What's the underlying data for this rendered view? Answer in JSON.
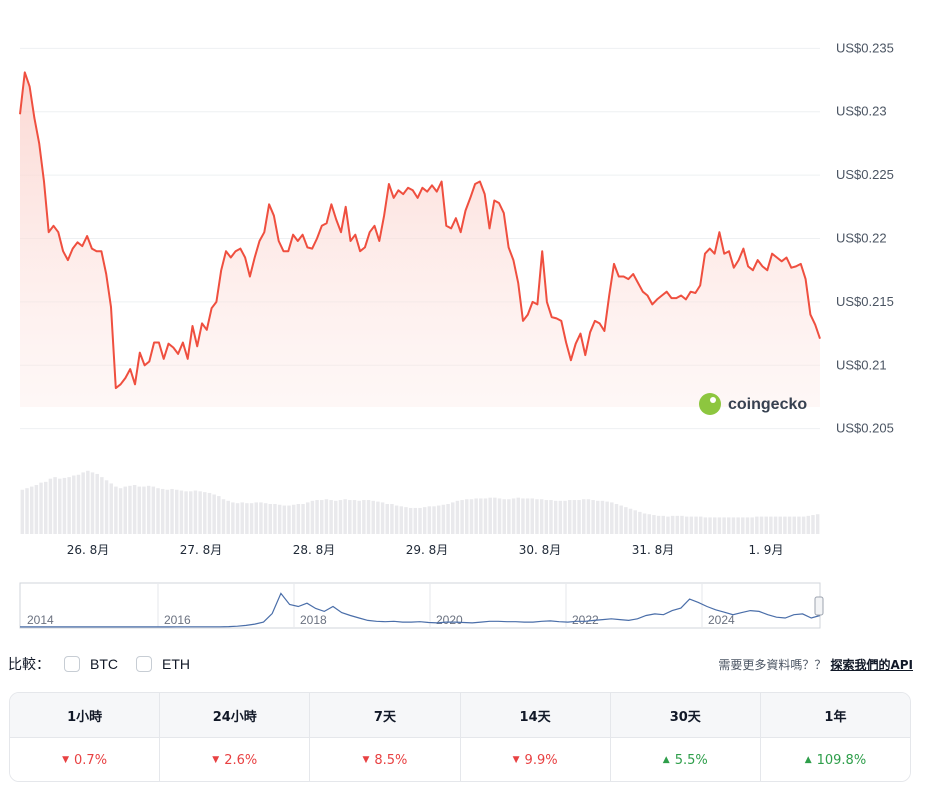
{
  "chart_data": {
    "type": "area",
    "series": [
      {
        "values": [
          0.2298,
          0.2331,
          0.232,
          0.2295,
          0.2275,
          0.2245,
          0.2205,
          0.221,
          0.2205,
          0.219,
          0.2183,
          0.2192,
          0.2197,
          0.2194,
          0.2202,
          0.2192,
          0.219,
          0.219,
          0.2172,
          0.2146,
          0.2082,
          0.2085,
          0.209,
          0.2097,
          0.2085,
          0.211,
          0.21,
          0.2103,
          0.2118,
          0.2118,
          0.2105,
          0.2117,
          0.2114,
          0.2109,
          0.2118,
          0.2105,
          0.2131,
          0.2115,
          0.2133,
          0.2128,
          0.2145,
          0.215,
          0.2175,
          0.219,
          0.2185,
          0.219,
          0.2192,
          0.2185,
          0.217,
          0.2185,
          0.2198,
          0.2205,
          0.2227,
          0.2218,
          0.2198,
          0.219,
          0.219,
          0.2203,
          0.2198,
          0.2203,
          0.2193,
          0.2192,
          0.22,
          0.221,
          0.2212,
          0.2227,
          0.2215,
          0.2205,
          0.2225,
          0.2198,
          0.2203,
          0.219,
          0.2193,
          0.2205,
          0.221,
          0.2198,
          0.2218,
          0.2243,
          0.2232,
          0.2238,
          0.2235,
          0.224,
          0.2238,
          0.2232,
          0.224,
          0.2237,
          0.2242,
          0.2237,
          0.2245,
          0.221,
          0.2208,
          0.2216,
          0.2205,
          0.2222,
          0.2232,
          0.2243,
          0.2245,
          0.2235,
          0.2208,
          0.223,
          0.2228,
          0.222,
          0.2193,
          0.2183,
          0.2165,
          0.2135,
          0.214,
          0.215,
          0.2148,
          0.219,
          0.215,
          0.2138,
          0.2137,
          0.2135,
          0.2118,
          0.2104,
          0.2117,
          0.2125,
          0.2108,
          0.2126,
          0.2135,
          0.2133,
          0.2127,
          0.2155,
          0.218,
          0.217,
          0.217,
          0.2168,
          0.2172,
          0.2165,
          0.2158,
          0.2155,
          0.2148,
          0.2152,
          0.2155,
          0.2158,
          0.2153,
          0.2153,
          0.2155,
          0.2152,
          0.2158,
          0.2157,
          0.2163,
          0.2188,
          0.2192,
          0.2188,
          0.2205,
          0.2188,
          0.219,
          0.2177,
          0.2183,
          0.2192,
          0.2178,
          0.2175,
          0.2183,
          0.2178,
          0.2175,
          0.2188,
          0.2185,
          0.2182,
          0.2185,
          0.2177,
          0.2178,
          0.218,
          0.2168,
          0.214,
          0.2132,
          0.2121
        ]
      }
    ],
    "xlabels": [
      "26. 8月",
      "27. 8月",
      "28. 8月",
      "29. 8月",
      "30. 8月",
      "31. 8月",
      "1. 9月"
    ],
    "ytick_labels": [
      "US$0.205",
      "US$0.21",
      "US$0.215",
      "US$0.22",
      "US$0.225",
      "US$0.23",
      "US$0.235"
    ],
    "yticks": [
      0.205,
      0.21,
      0.215,
      0.22,
      0.225,
      0.23,
      0.235
    ],
    "ylim": [
      0.2045,
      0.2355
    ],
    "grid": true,
    "volume": [
      0.56,
      0.58,
      0.6,
      0.62,
      0.65,
      0.66,
      0.7,
      0.72,
      0.7,
      0.71,
      0.72,
      0.74,
      0.75,
      0.78,
      0.8,
      0.78,
      0.76,
      0.72,
      0.68,
      0.64,
      0.6,
      0.58,
      0.6,
      0.61,
      0.62,
      0.6,
      0.6,
      0.61,
      0.6,
      0.58,
      0.57,
      0.56,
      0.57,
      0.56,
      0.55,
      0.54,
      0.54,
      0.55,
      0.54,
      0.53,
      0.52,
      0.5,
      0.48,
      0.44,
      0.42,
      0.4,
      0.39,
      0.4,
      0.39,
      0.39,
      0.4,
      0.4,
      0.39,
      0.38,
      0.38,
      0.37,
      0.36,
      0.36,
      0.37,
      0.38,
      0.38,
      0.4,
      0.42,
      0.43,
      0.43,
      0.44,
      0.43,
      0.42,
      0.43,
      0.44,
      0.43,
      0.43,
      0.42,
      0.43,
      0.43,
      0.42,
      0.41,
      0.4,
      0.38,
      0.38,
      0.36,
      0.35,
      0.34,
      0.33,
      0.33,
      0.33,
      0.34,
      0.35,
      0.35,
      0.36,
      0.37,
      0.38,
      0.4,
      0.42,
      0.43,
      0.44,
      0.44,
      0.45,
      0.45,
      0.45,
      0.46,
      0.46,
      0.45,
      0.44,
      0.44,
      0.45,
      0.46,
      0.45,
      0.45,
      0.45,
      0.44,
      0.44,
      0.43,
      0.43,
      0.42,
      0.42,
      0.42,
      0.43,
      0.43,
      0.43,
      0.44,
      0.44,
      0.43,
      0.42,
      0.42,
      0.41,
      0.4,
      0.38,
      0.36,
      0.34,
      0.32,
      0.3,
      0.28,
      0.26,
      0.25,
      0.24,
      0.23,
      0.23,
      0.22,
      0.23,
      0.23,
      0.23,
      0.22,
      0.22,
      0.22,
      0.22,
      0.21,
      0.21,
      0.21,
      0.21,
      0.21,
      0.21,
      0.21,
      0.21,
      0.21,
      0.21,
      0.21,
      0.22,
      0.22,
      0.22,
      0.22,
      0.22,
      0.22,
      0.22,
      0.22,
      0.22,
      0.22,
      0.22,
      0.23,
      0.24,
      0.25
    ],
    "navigator": {
      "year_labels": [
        "2014",
        "2016",
        "2018",
        "2020",
        "2022",
        "2024"
      ],
      "values": [
        0.002,
        0.002,
        0.002,
        0.002,
        0.002,
        0.002,
        0.002,
        0.002,
        0.002,
        0.002,
        0.002,
        0.002,
        0.002,
        0.002,
        0.002,
        0.003,
        0.003,
        0.003,
        0.004,
        0.005,
        0.004,
        0.004,
        0.005,
        0.006,
        0.01,
        0.02,
        0.04,
        0.07,
        0.12,
        0.33,
        0.82,
        0.55,
        0.5,
        0.58,
        0.45,
        0.38,
        0.5,
        0.35,
        0.28,
        0.22,
        0.16,
        0.14,
        0.13,
        0.14,
        0.12,
        0.12,
        0.13,
        0.11,
        0.1,
        0.12,
        0.12,
        0.11,
        0.1,
        0.12,
        0.14,
        0.14,
        0.13,
        0.13,
        0.12,
        0.12,
        0.14,
        0.15,
        0.13,
        0.12,
        0.14,
        0.14,
        0.16,
        0.18,
        0.2,
        0.18,
        0.16,
        0.2,
        0.28,
        0.32,
        0.3,
        0.4,
        0.46,
        0.68,
        0.6,
        0.5,
        0.42,
        0.36,
        0.3,
        0.35,
        0.4,
        0.38,
        0.3,
        0.24,
        0.22,
        0.3,
        0.32,
        0.22,
        0.28
      ]
    }
  },
  "watermark": {
    "text": "coingecko",
    "icon": "gecko-logo-icon"
  },
  "compare": {
    "label": "比較：",
    "options": [
      {
        "label": "BTC",
        "checked": false
      },
      {
        "label": "ETH",
        "checked": false
      }
    ],
    "more_data_text": "需要更多資料嗎？？",
    "api_link_text": "探索我們的API"
  },
  "performance": {
    "columns": [
      {
        "period": "1小時",
        "change": "0.7%",
        "direction": "down"
      },
      {
        "period": "24小時",
        "change": "2.6%",
        "direction": "down"
      },
      {
        "period": "7天",
        "change": "8.5%",
        "direction": "down"
      },
      {
        "period": "14天",
        "change": "9.9%",
        "direction": "down"
      },
      {
        "period": "30天",
        "change": "5.5%",
        "direction": "up"
      },
      {
        "period": "1年",
        "change": "109.8%",
        "direction": "up"
      }
    ]
  },
  "colors": {
    "line": "#ef4f3f",
    "area_top": "#fde3df",
    "volume_bar": "#e9e9ec",
    "navigator_line": "#4a6ea9",
    "negative": "#e84142",
    "positive": "#2e9e4a"
  }
}
